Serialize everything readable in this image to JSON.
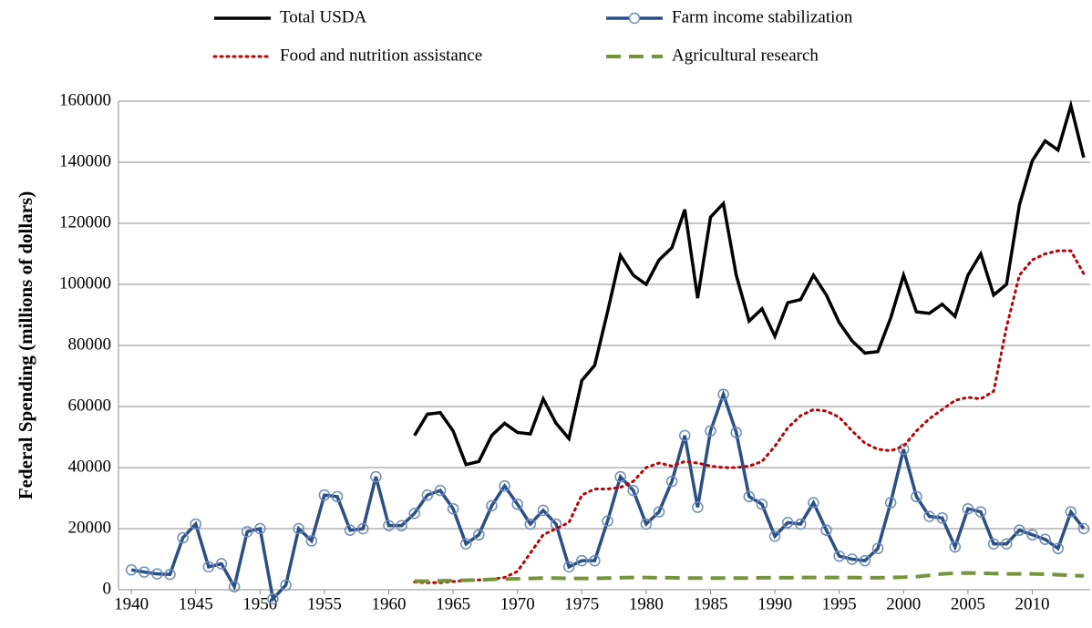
{
  "chart_data": {
    "type": "line",
    "y_label": "Federal Spending (millions of dollars)",
    "x": [
      1940,
      1941,
      1942,
      1943,
      1944,
      1945,
      1946,
      1947,
      1948,
      1949,
      1950,
      1951,
      1952,
      1953,
      1954,
      1955,
      1956,
      1957,
      1958,
      1959,
      1960,
      1961,
      1962,
      1963,
      1964,
      1965,
      1966,
      1967,
      1968,
      1969,
      1970,
      1971,
      1972,
      1973,
      1974,
      1975,
      1976,
      1977,
      1978,
      1979,
      1980,
      1981,
      1982,
      1983,
      1984,
      1985,
      1986,
      1987,
      1988,
      1989,
      1990,
      1991,
      1992,
      1993,
      1994,
      1995,
      1996,
      1997,
      1998,
      1999,
      2000,
      2001,
      2002,
      2003,
      2004,
      2005,
      2006,
      2007,
      2008,
      2009,
      2010,
      2011,
      2012,
      2013,
      2014
    ],
    "series": [
      {
        "name": "Total USDA",
        "color": "#000000",
        "style": "solid",
        "values": [
          null,
          null,
          null,
          null,
          null,
          null,
          null,
          null,
          null,
          null,
          null,
          null,
          null,
          null,
          null,
          null,
          null,
          null,
          null,
          null,
          null,
          null,
          50500,
          57500,
          58000,
          52000,
          41000,
          42000,
          50500,
          54500,
          51500,
          51000,
          62500,
          54500,
          49500,
          68500,
          73500,
          91000,
          109500,
          103000,
          100000,
          108000,
          112000,
          124500,
          95500,
          122000,
          126500,
          103000,
          88000,
          92000,
          83000,
          94000,
          95000,
          103000,
          96500,
          87500,
          81500,
          77500,
          78000,
          89000,
          103000,
          91000,
          90500,
          93500,
          89500,
          103000,
          110000,
          96500,
          100000,
          126000,
          140500,
          147000,
          144000,
          158500,
          141500
        ]
      },
      {
        "name": "Farm income stabilization",
        "color": "#2a4e86",
        "style": "marker",
        "values": [
          6500,
          5800,
          5200,
          5000,
          17000,
          21500,
          7500,
          8500,
          1000,
          19000,
          20000,
          -3000,
          1500,
          20000,
          16000,
          31000,
          30500,
          19500,
          20000,
          37000,
          21000,
          21000,
          25000,
          31000,
          32500,
          26500,
          15000,
          18000,
          27500,
          34000,
          28000,
          21500,
          26000,
          21500,
          7500,
          9500,
          9500,
          22500,
          37000,
          32500,
          21500,
          25500,
          35500,
          50500,
          27000,
          52000,
          64000,
          51500,
          30500,
          28000,
          17500,
          22000,
          21500,
          28500,
          19500,
          11000,
          10000,
          9500,
          13500,
          28500,
          46000,
          30500,
          24000,
          23500,
          14000,
          26500,
          25500,
          15000,
          15000,
          19500,
          18000,
          16500,
          13500,
          25500,
          20000
        ]
      },
      {
        "name": "Food and nutrition assistance",
        "color": "#c00000",
        "style": "dotted",
        "values": [
          null,
          null,
          null,
          null,
          null,
          null,
          null,
          null,
          null,
          null,
          null,
          null,
          null,
          null,
          null,
          null,
          null,
          null,
          null,
          null,
          null,
          null,
          2500,
          2300,
          2300,
          2700,
          3000,
          3200,
          3500,
          4000,
          6000,
          12000,
          18000,
          20000,
          22000,
          31000,
          33000,
          33000,
          33500,
          35500,
          40000,
          41500,
          40500,
          42000,
          41500,
          40500,
          40000,
          40000,
          40500,
          42000,
          47000,
          53000,
          57000,
          59000,
          58500,
          56500,
          52000,
          48000,
          46000,
          45500,
          47000,
          52000,
          56000,
          59000,
          62000,
          63000,
          62500,
          65000,
          86000,
          103000,
          108000,
          110000,
          111000,
          111000,
          103500
        ]
      },
      {
        "name": "Agricultural research",
        "color": "#77933c",
        "style": "dashed",
        "values": [
          null,
          null,
          null,
          null,
          null,
          null,
          null,
          null,
          null,
          null,
          null,
          null,
          null,
          null,
          null,
          null,
          null,
          null,
          null,
          null,
          null,
          null,
          2800,
          2800,
          2900,
          3000,
          3100,
          3200,
          3400,
          3500,
          3600,
          3700,
          3800,
          3800,
          3700,
          3700,
          3700,
          3800,
          3900,
          4000,
          4000,
          3900,
          3900,
          3800,
          3800,
          3800,
          3800,
          3800,
          3800,
          3900,
          3900,
          3900,
          4000,
          4000,
          4000,
          4000,
          4000,
          3900,
          3900,
          4000,
          4100,
          4300,
          4700,
          5200,
          5400,
          5500,
          5400,
          5300,
          5200,
          5200,
          5200,
          5100,
          4900,
          4700,
          4500
        ]
      }
    ],
    "xlim": [
      1939,
      2014.5
    ],
    "xticks": [
      1940,
      1945,
      1950,
      1955,
      1960,
      1965,
      1970,
      1975,
      1980,
      1985,
      1990,
      1995,
      2000,
      2005,
      2010
    ],
    "ylim": [
      0,
      160000
    ],
    "yticks": [
      0,
      20000,
      40000,
      60000,
      80000,
      100000,
      120000,
      140000,
      160000
    ],
    "grid": true,
    "legend": "top"
  }
}
